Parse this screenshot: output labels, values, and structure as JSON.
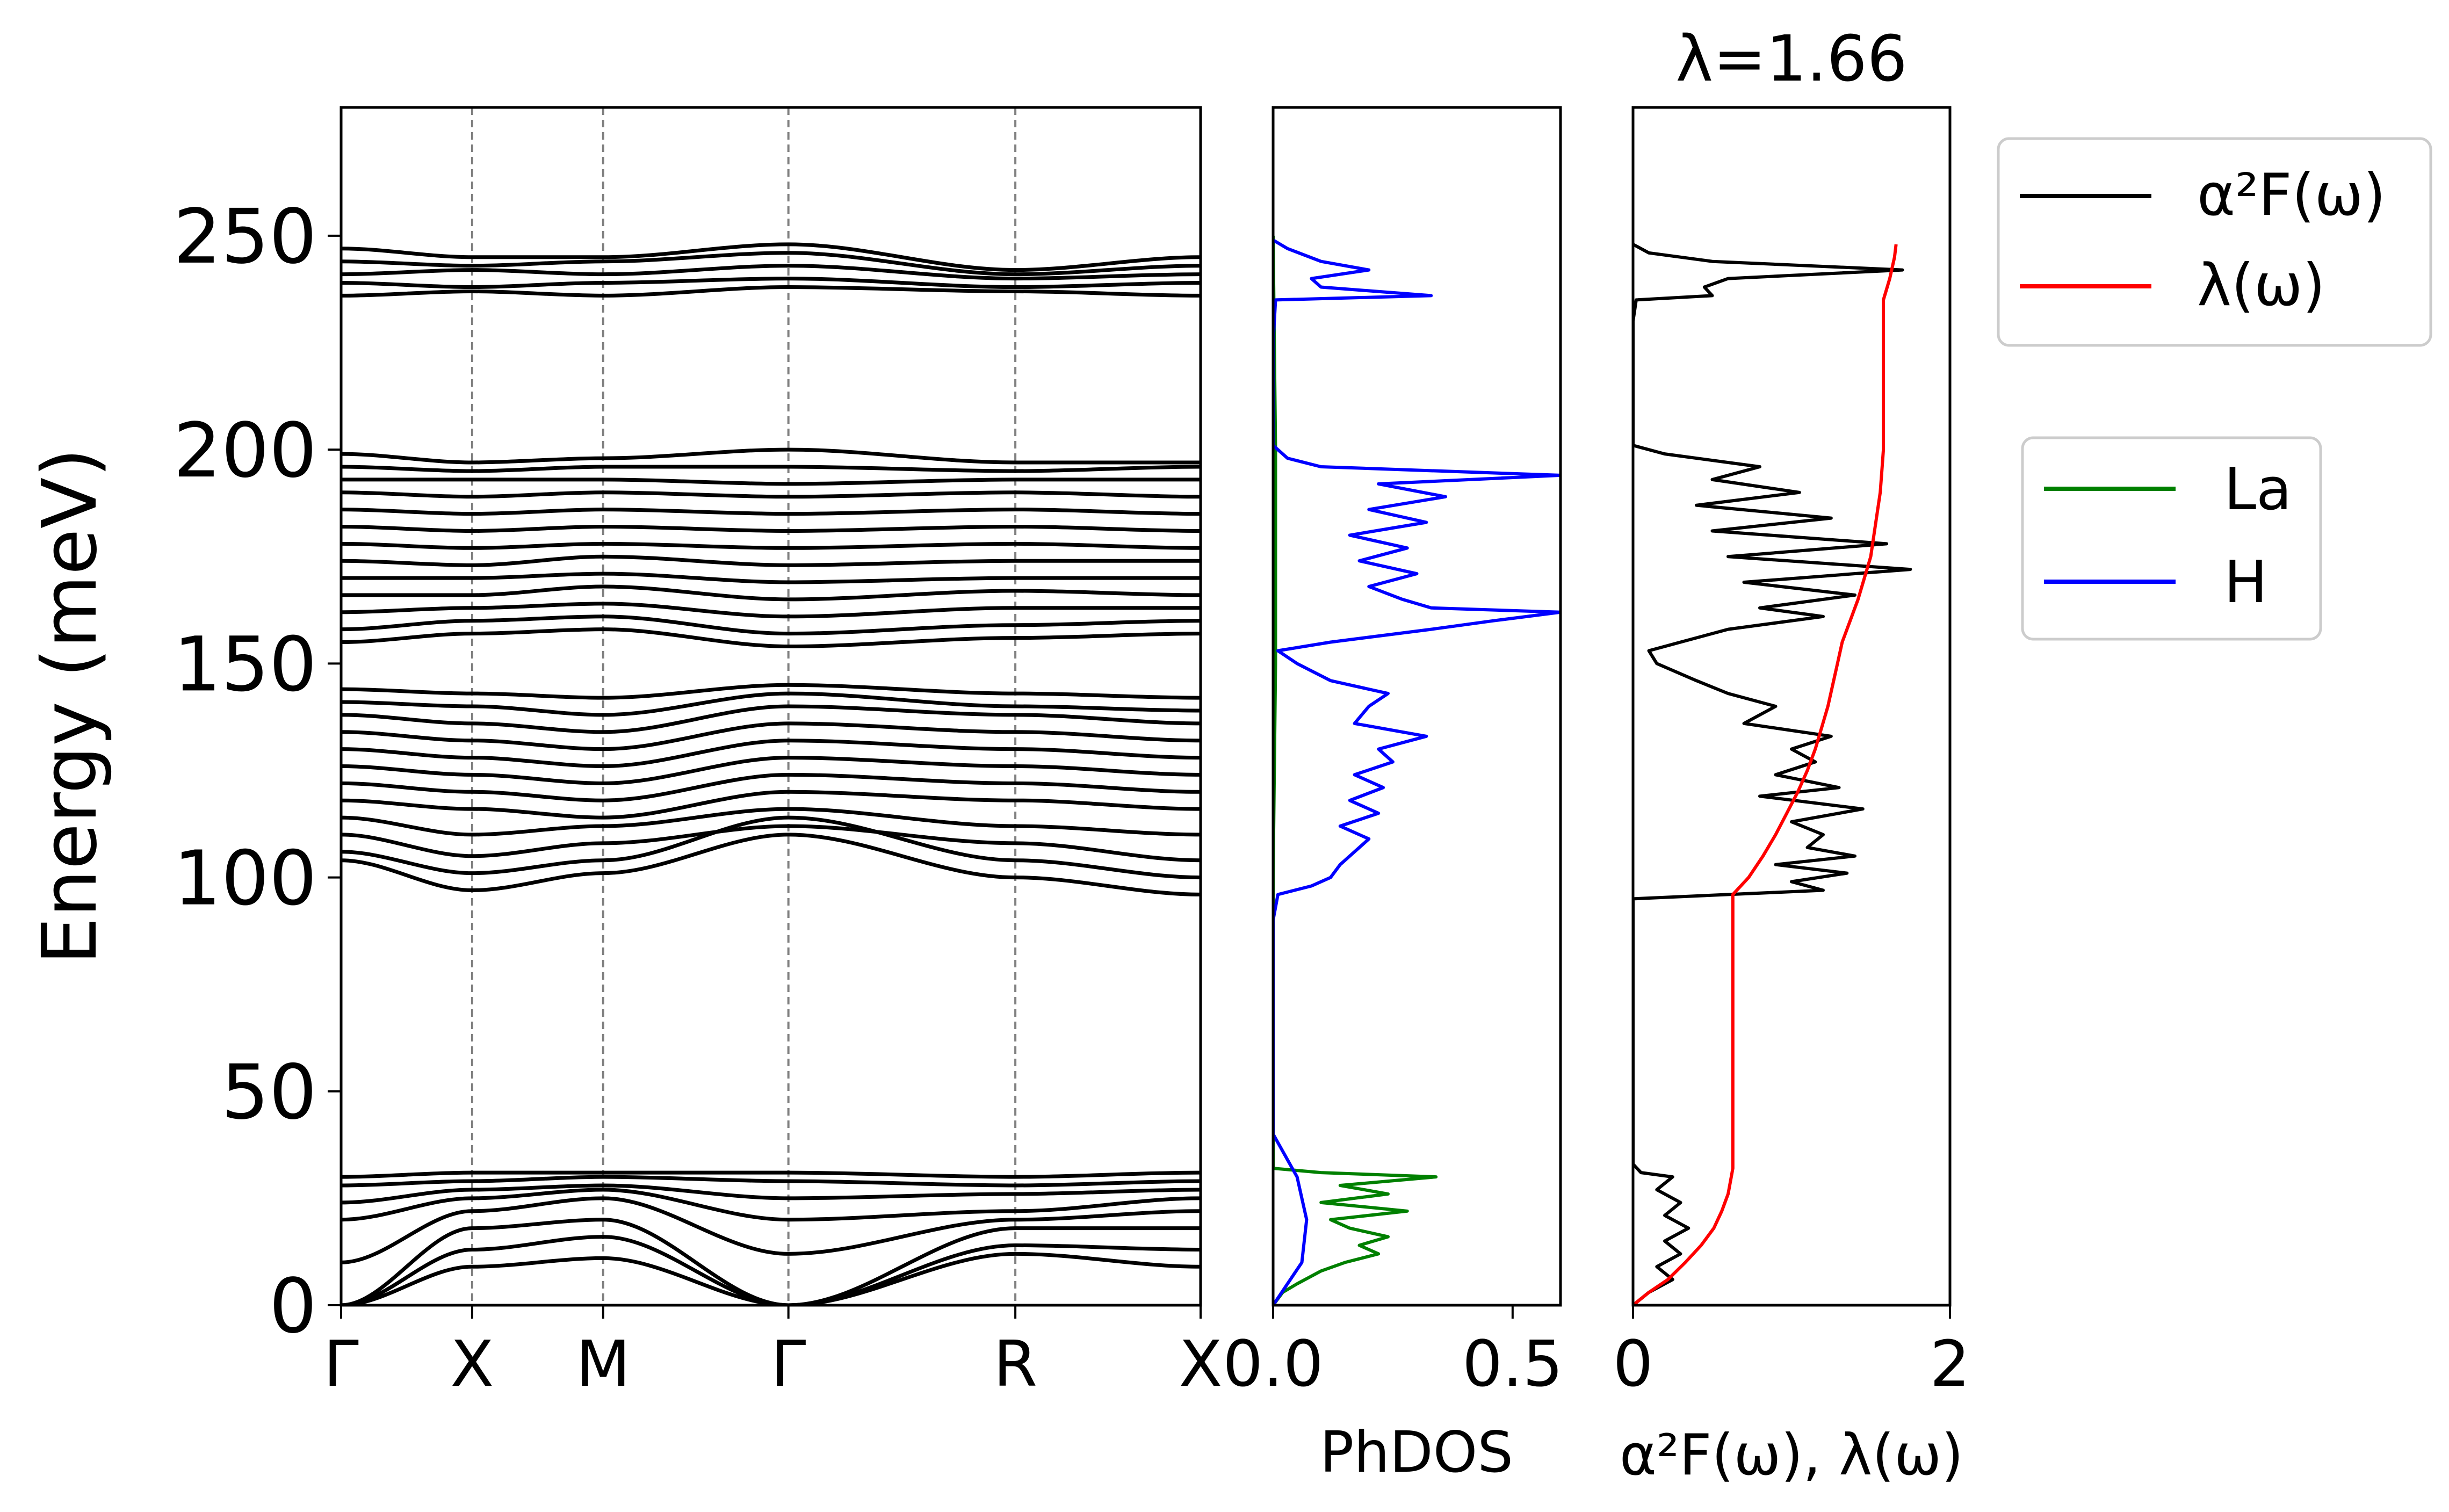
{
  "chart_data": [
    {
      "type": "line",
      "panel": "phonon-dispersion",
      "ylabel": "Energy (meV)",
      "ylim": [
        0,
        280
      ],
      "yticks": [
        0,
        50,
        100,
        150,
        200,
        250
      ],
      "high_symmetry_points": [
        {
          "label": "Γ",
          "x": 0.0
        },
        {
          "label": "X",
          "x": 0.5
        },
        {
          "label": "M",
          "x": 1.0
        },
        {
          "label": "Γ",
          "x": 1.707
        },
        {
          "label": "R",
          "x": 2.573
        },
        {
          "label": "X",
          "x": 3.28
        }
      ],
      "xlim": [
        0,
        3.28
      ],
      "line_color": "#000000",
      "gridline_color": "#808080",
      "bands": [
        {
          "name": "band-1",
          "values": [
            0,
            9,
            11,
            0,
            12,
            9
          ]
        },
        {
          "name": "band-2",
          "values": [
            0,
            13,
            16,
            0,
            14,
            13
          ]
        },
        {
          "name": "band-3",
          "values": [
            0,
            18,
            20,
            0,
            18,
            18
          ]
        },
        {
          "name": "band-4",
          "values": [
            10,
            22,
            25,
            12,
            20,
            22
          ]
        },
        {
          "name": "band-5",
          "values": [
            20,
            25,
            27,
            20,
            22,
            25
          ]
        },
        {
          "name": "band-6",
          "values": [
            24,
            27,
            28,
            25,
            26,
            27
          ]
        },
        {
          "name": "band-7",
          "values": [
            28,
            29,
            30,
            29,
            28,
            29
          ]
        },
        {
          "name": "band-8",
          "values": [
            30,
            31,
            31,
            31,
            30,
            31
          ]
        },
        {
          "name": "band-9",
          "values": [
            104,
            97,
            101,
            110,
            100,
            96
          ]
        },
        {
          "name": "band-10",
          "values": [
            106,
            101,
            104,
            114,
            104,
            100
          ]
        },
        {
          "name": "band-11",
          "values": [
            110,
            105,
            108,
            112,
            108,
            104
          ]
        },
        {
          "name": "band-12",
          "values": [
            114,
            110,
            112,
            116,
            112,
            110
          ]
        },
        {
          "name": "band-13",
          "values": [
            118,
            116,
            114,
            120,
            118,
            116
          ]
        },
        {
          "name": "band-14",
          "values": [
            122,
            120,
            118,
            124,
            122,
            120
          ]
        },
        {
          "name": "band-15",
          "values": [
            126,
            124,
            122,
            128,
            126,
            124
          ]
        },
        {
          "name": "band-16",
          "values": [
            130,
            128,
            126,
            132,
            130,
            128
          ]
        },
        {
          "name": "band-17",
          "values": [
            134,
            132,
            130,
            136,
            134,
            132
          ]
        },
        {
          "name": "band-18",
          "values": [
            138,
            136,
            134,
            140,
            138,
            136
          ]
        },
        {
          "name": "band-19",
          "values": [
            141,
            140,
            138,
            143,
            140,
            139
          ]
        },
        {
          "name": "band-20",
          "values": [
            144,
            143,
            142,
            145,
            143,
            142
          ]
        },
        {
          "name": "band-21",
          "values": [
            155,
            157,
            158,
            154,
            156,
            157
          ]
        },
        {
          "name": "band-22",
          "values": [
            158,
            160,
            161,
            157,
            159,
            160
          ]
        },
        {
          "name": "band-23",
          "values": [
            162,
            163,
            164,
            161,
            163,
            163
          ]
        },
        {
          "name": "band-24",
          "values": [
            166,
            166,
            168,
            165,
            167,
            166
          ]
        },
        {
          "name": "band-25",
          "values": [
            170,
            170,
            171,
            169,
            170,
            170
          ]
        },
        {
          "name": "band-26",
          "values": [
            174,
            173,
            175,
            173,
            174,
            174
          ]
        },
        {
          "name": "band-27",
          "values": [
            178,
            177,
            178,
            177,
            178,
            177
          ]
        },
        {
          "name": "band-28",
          "values": [
            182,
            181,
            182,
            181,
            182,
            181
          ]
        },
        {
          "name": "band-29",
          "values": [
            186,
            185,
            186,
            185,
            186,
            185
          ]
        },
        {
          "name": "band-30",
          "values": [
            190,
            189,
            190,
            189,
            190,
            189
          ]
        },
        {
          "name": "band-31",
          "values": [
            193,
            193,
            193,
            192,
            193,
            193
          ]
        },
        {
          "name": "band-32",
          "values": [
            196,
            195,
            196,
            196,
            195,
            196
          ]
        },
        {
          "name": "band-33",
          "values": [
            199,
            197,
            198,
            200,
            197,
            197
          ]
        },
        {
          "name": "band-34",
          "values": [
            236,
            237,
            236,
            238,
            237,
            236
          ]
        },
        {
          "name": "band-35",
          "values": [
            239,
            238,
            239,
            240,
            238,
            239
          ]
        },
        {
          "name": "band-36",
          "values": [
            241,
            242,
            241,
            243,
            240,
            241
          ]
        },
        {
          "name": "band-37",
          "values": [
            244,
            243,
            244,
            246,
            241,
            243
          ]
        },
        {
          "name": "band-38",
          "values": [
            247,
            245,
            245,
            248,
            242,
            245
          ]
        }
      ]
    },
    {
      "type": "line",
      "panel": "phonon-dos",
      "xlabel": "PhDOS",
      "xlim": [
        0,
        0.6
      ],
      "xticks": [
        "0.0",
        "0.5"
      ],
      "ylim": [
        0,
        280
      ],
      "series": [
        {
          "name": "La",
          "color": "#008000",
          "energy": [
            0,
            3,
            5,
            8,
            10,
            12,
            14,
            16,
            18,
            20,
            22,
            24,
            26,
            28,
            30,
            31,
            32,
            50,
            100,
            150,
            200,
            250
          ],
          "values": [
            0,
            0.02,
            0.05,
            0.1,
            0.15,
            0.22,
            0.18,
            0.24,
            0.16,
            0.12,
            0.28,
            0.1,
            0.24,
            0.14,
            0.34,
            0.1,
            0,
            0,
            0,
            0.005,
            0.005,
            0
          ]
        },
        {
          "name": "H",
          "color": "#0000ff",
          "energy": [
            0,
            10,
            20,
            30,
            40,
            90,
            96,
            98,
            100,
            103,
            106,
            109,
            112,
            115,
            118,
            121,
            124,
            127,
            130,
            133,
            136,
            140,
            143,
            146,
            150,
            153,
            155,
            158,
            160,
            162,
            163,
            165,
            168,
            171,
            174,
            177,
            180,
            183,
            186,
            189,
            192,
            194,
            196,
            198,
            201,
            225,
            235,
            236,
            238,
            240,
            242,
            244,
            247,
            249
          ],
          "values": [
            0,
            0.06,
            0.07,
            0.05,
            0,
            0,
            0.01,
            0.08,
            0.12,
            0.14,
            0.17,
            0.2,
            0.14,
            0.22,
            0.16,
            0.23,
            0.17,
            0.25,
            0.22,
            0.32,
            0.17,
            0.2,
            0.24,
            0.12,
            0.05,
            0.01,
            0.12,
            0.33,
            0.46,
            0.6,
            0.33,
            0.27,
            0.2,
            0.3,
            0.18,
            0.28,
            0.16,
            0.32,
            0.2,
            0.36,
            0.22,
            0.6,
            0.1,
            0.03,
            0,
            0,
            0.005,
            0.33,
            0.1,
            0.08,
            0.2,
            0.1,
            0.03,
            0
          ]
        }
      ]
    },
    {
      "type": "line",
      "panel": "eliashberg",
      "title": "λ=1.66",
      "xlabel": "α²F(ω), λ(ω)",
      "xlim": [
        0,
        2
      ],
      "xticks": [
        "0",
        "2"
      ],
      "ylim": [
        0,
        280
      ],
      "series": [
        {
          "name": "α²F(ω)",
          "color": "#000000",
          "energy": [
            0,
            3,
            6,
            9,
            12,
            15,
            18,
            21,
            24,
            27,
            30,
            31,
            33,
            95,
            96,
            97,
            99,
            101,
            103,
            105,
            107,
            110,
            113,
            116,
            119,
            121,
            124,
            127,
            130,
            133,
            136,
            140,
            143,
            146,
            150,
            153,
            155,
            158,
            161,
            163,
            166,
            169,
            172,
            175,
            178,
            181,
            184,
            187,
            190,
            193,
            196,
            199,
            201,
            230,
            235,
            236,
            238,
            240,
            242,
            244,
            246,
            248
          ],
          "values": [
            0,
            0.1,
            0.25,
            0.15,
            0.3,
            0.2,
            0.35,
            0.2,
            0.3,
            0.15,
            0.25,
            0.05,
            0,
            0,
            0.6,
            1.2,
            1.0,
            1.35,
            0.9,
            1.4,
            1.1,
            1.2,
            1.0,
            1.45,
            0.8,
            1.3,
            0.9,
            1.15,
            1.0,
            1.25,
            0.7,
            0.9,
            0.6,
            0.4,
            0.15,
            0.1,
            0.3,
            0.6,
            1.2,
            0.8,
            1.4,
            0.7,
            1.75,
            0.6,
            1.6,
            0.5,
            1.25,
            0.4,
            1.05,
            0.5,
            0.8,
            0.2,
            0,
            0,
            0.02,
            0.5,
            0.45,
            0.6,
            1.7,
            0.5,
            0.1,
            0
          ]
        },
        {
          "name": "λ(ω)",
          "color": "#ff0000",
          "energy": [
            0,
            3,
            6,
            10,
            14,
            18,
            22,
            26,
            30,
            32,
            60,
            96,
            100,
            105,
            110,
            115,
            120,
            125,
            130,
            135,
            140,
            145,
            150,
            155,
            160,
            165,
            170,
            175,
            180,
            185,
            190,
            195,
            200,
            235,
            240,
            245,
            248
          ],
          "values": [
            0,
            0.1,
            0.22,
            0.33,
            0.43,
            0.51,
            0.56,
            0.6,
            0.62,
            0.63,
            0.63,
            0.63,
            0.73,
            0.82,
            0.9,
            0.97,
            1.04,
            1.1,
            1.15,
            1.19,
            1.23,
            1.26,
            1.29,
            1.32,
            1.37,
            1.42,
            1.46,
            1.5,
            1.52,
            1.54,
            1.56,
            1.57,
            1.58,
            1.58,
            1.62,
            1.65,
            1.66
          ]
        }
      ]
    }
  ],
  "legends": {
    "eliashberg": [
      {
        "label": "α²F(ω)",
        "color": "#000000"
      },
      {
        "label": "λ(ω)",
        "color": "#ff0000"
      }
    ],
    "dos": [
      {
        "label": "La",
        "color": "#008000"
      },
      {
        "label": "H",
        "color": "#0000ff"
      }
    ]
  }
}
